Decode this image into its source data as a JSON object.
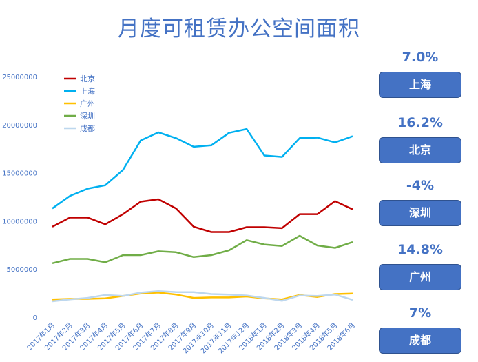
{
  "title": "月度可租赁办公空间面积",
  "chart_data": {
    "type": "line",
    "title": "月度可租赁办公空间面积",
    "xlabel": "",
    "ylabel": "",
    "ylim": [
      0,
      25000000
    ],
    "yticks": [
      0,
      5000000,
      10000000,
      15000000,
      20000000,
      25000000
    ],
    "ytick_labels": [
      "0",
      "5000000",
      "10000000",
      "15000000",
      "20000000",
      "25000000"
    ],
    "grid": false,
    "legend_position": "top-left",
    "categories": [
      "2017年1月",
      "2017年2月",
      "2017年3月",
      "2017年4月",
      "2017年5月",
      "2017年6月",
      "2017年7月",
      "2017年8月",
      "2017年9月",
      "2017年10月",
      "2017年11月",
      "2017年12月",
      "2018年1月",
      "2018年2月",
      "2018年3月",
      "2018年4月",
      "2018年5月",
      "2018年6月"
    ],
    "series": [
      {
        "name": "北京",
        "color": "#C00000",
        "values": [
          9400000,
          10350000,
          10350000,
          9650000,
          10700000,
          12000000,
          12250000,
          11300000,
          9400000,
          8850000,
          8850000,
          9350000,
          9350000,
          9250000,
          10700000,
          10700000,
          12050000,
          11200000
        ]
      },
      {
        "name": "上海",
        "color": "#00B0F0",
        "values": [
          11300000,
          12600000,
          13350000,
          13700000,
          15300000,
          18350000,
          19200000,
          18600000,
          17700000,
          17850000,
          19150000,
          19550000,
          16800000,
          16650000,
          18600000,
          18650000,
          18150000,
          18800000
        ]
      },
      {
        "name": "广州",
        "color": "#FFC000",
        "values": [
          1850000,
          1900000,
          1900000,
          1950000,
          2200000,
          2450000,
          2550000,
          2350000,
          2000000,
          2050000,
          2050000,
          2150000,
          1950000,
          1850000,
          2300000,
          2100000,
          2400000,
          2450000
        ]
      },
      {
        "name": "深圳",
        "color": "#70AD47",
        "values": [
          5600000,
          6050000,
          6050000,
          5700000,
          6450000,
          6450000,
          6850000,
          6750000,
          6250000,
          6450000,
          6950000,
          8000000,
          7550000,
          7400000,
          8450000,
          7450000,
          7200000,
          7800000
        ]
      },
      {
        "name": "成都",
        "color": "#BDD7EE",
        "values": [
          1650000,
          1850000,
          2000000,
          2300000,
          2200000,
          2550000,
          2700000,
          2600000,
          2600000,
          2400000,
          2350000,
          2250000,
          2000000,
          1700000,
          2250000,
          2200000,
          2350000,
          1800000
        ]
      }
    ]
  },
  "cards": [
    {
      "percent": "7.0%",
      "label": "上海"
    },
    {
      "percent": "16.2%",
      "label": "北京"
    },
    {
      "percent": "-4%",
      "label": "深圳"
    },
    {
      "percent": "14.8%",
      "label": "广州"
    },
    {
      "percent": "7%",
      "label": "成都"
    }
  ]
}
